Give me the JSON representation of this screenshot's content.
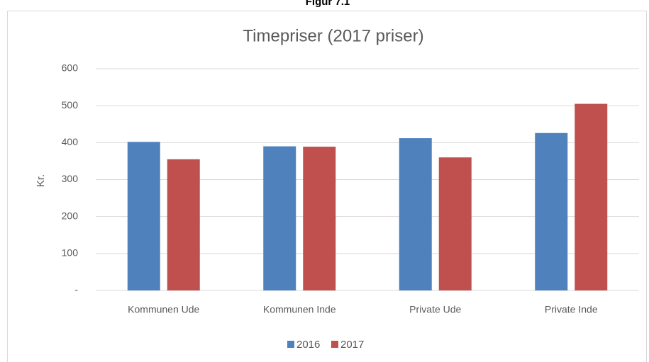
{
  "figure_label": "Figur 7.1",
  "chart_data": {
    "type": "bar",
    "title": "Timepriser (2017 priser)",
    "ylabel": "Kr.",
    "categories": [
      "Kommunen Ude",
      "Kommunen Inde",
      "Private Ude",
      "Private Inde"
    ],
    "series": [
      {
        "name": "2016",
        "color": "#4f81bd",
        "values": [
          402,
          390,
          412,
          426
        ]
      },
      {
        "name": "2017",
        "color": "#c0504d",
        "values": [
          355,
          389,
          360,
          505
        ]
      }
    ],
    "ylim": [
      0,
      600
    ],
    "yticks": [
      {
        "value": 0,
        "label": "-"
      },
      100,
      200,
      300,
      400,
      500,
      600
    ],
    "grid": true,
    "legend": "bottom"
  }
}
